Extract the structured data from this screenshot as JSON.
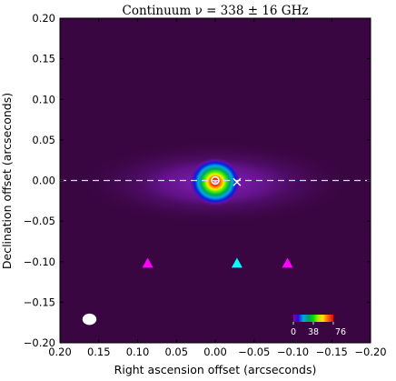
{
  "chart_data": {
    "type": "heatmap",
    "title": "Continuum ν = 338 ± 16 GHz",
    "xlabel": "Right ascension offset (arcseconds)",
    "ylabel": "Declination offset (arcseconds)",
    "xlim": [
      0.2,
      -0.2
    ],
    "ylim": [
      -0.2,
      0.2
    ],
    "x_reversed": true,
    "x_ticks": [
      0.2,
      0.15,
      0.1,
      0.05,
      0.0,
      -0.05,
      -0.1,
      -0.15,
      -0.2
    ],
    "x_tick_labels": [
      "0.20",
      "0.15",
      "0.10",
      "0.05",
      "0.00",
      "−0.05",
      "−0.10",
      "−0.15",
      "−0.20"
    ],
    "y_ticks": [
      0.2,
      0.15,
      0.1,
      0.05,
      0.0,
      -0.05,
      -0.1,
      -0.15,
      -0.2
    ],
    "y_tick_labels": [
      "0.20",
      "0.15",
      "0.10",
      "0.05",
      "0.00",
      "−0.05",
      "−0.10",
      "−0.15",
      "−0.20"
    ],
    "grid": false,
    "colormap": "nipy_spectral",
    "background_color": "#3a0642",
    "colorbar": {
      "min": 0,
      "max": 76,
      "tick_values": [
        0,
        38,
        76
      ],
      "tick_labels": [
        "0",
        "38",
        "76"
      ],
      "placement": "bottom-right inset"
    },
    "emission_source": {
      "center": [
        0.0,
        0.0
      ],
      "peak": 76,
      "core_fwhm_arcsec": 0.035,
      "disk_extent_x_arcsec": 0.3,
      "disk_extent_y_arcsec": 0.065
    },
    "markers": [
      {
        "shape": "circle-outline",
        "x": 0.0,
        "y": 0.0,
        "color": "#ffffff"
      },
      {
        "shape": "x",
        "x": -0.028,
        "y": -0.002,
        "color": "#ffffff"
      },
      {
        "shape": "triangle",
        "x": 0.087,
        "y": -0.102,
        "color": "#ff00ff"
      },
      {
        "shape": "triangle",
        "x": -0.028,
        "y": -0.102,
        "color": "#00ffff"
      },
      {
        "shape": "triangle",
        "x": -0.093,
        "y": -0.102,
        "color": "#ff00ff"
      }
    ],
    "dashed_line": {
      "y": 0.0,
      "color": "#d8d8ff"
    },
    "beam": {
      "x": 0.162,
      "y": -0.171,
      "major_arcsec": 0.018,
      "minor_arcsec": 0.014,
      "color": "#ffffff"
    }
  }
}
